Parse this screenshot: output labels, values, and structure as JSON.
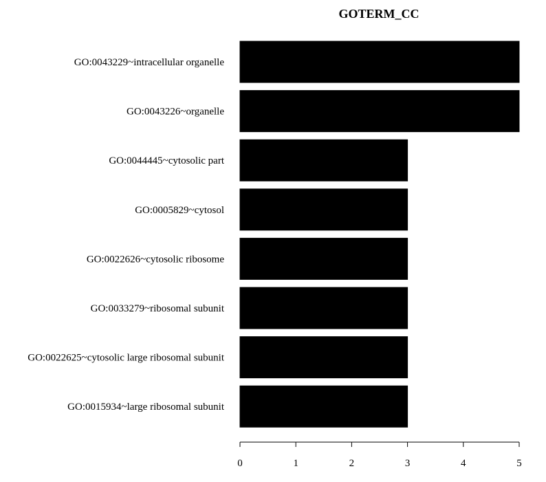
{
  "chart_data": {
    "type": "bar",
    "orientation": "horizontal",
    "title": "GOTERM_CC",
    "xlabel": "",
    "ylabel": "",
    "categories": [
      "GO:0043229~intracellular organelle",
      "GO:0043226~organelle",
      "GO:0044445~cytosolic part",
      "GO:0005829~cytosol",
      "GO:0022626~cytosolic ribosome",
      "GO:0033279~ribosomal subunit",
      "GO:0022625~cytosolic large ribosomal subunit",
      "GO:0015934~large ribosomal subunit"
    ],
    "values": [
      5,
      5,
      3,
      3,
      3,
      3,
      3,
      3
    ],
    "xlim": [
      0,
      5
    ],
    "x_ticks": [
      0,
      1,
      2,
      3,
      4,
      5
    ],
    "bar_color": "#000000",
    "grid": false
  }
}
